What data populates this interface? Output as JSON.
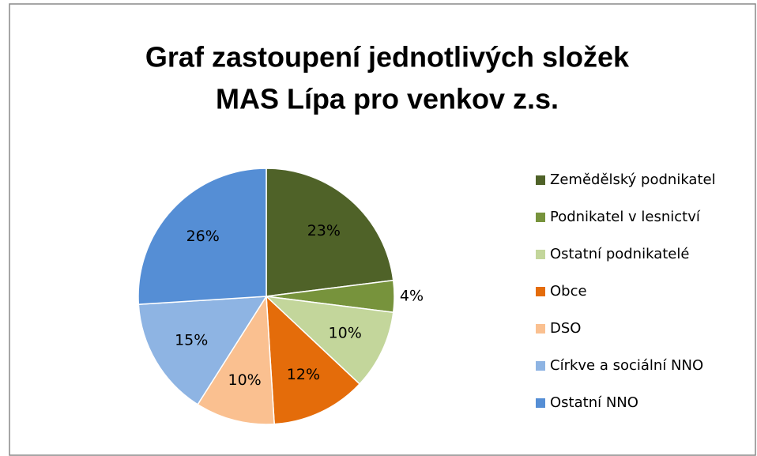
{
  "chart_data": {
    "type": "pie",
    "title": [
      "Graf zastoupení jednotlivých složek",
      "MAS Lípa pro venkov z.s."
    ],
    "categories": [
      "Zemědělský podnikatel",
      "Podnikatel v lesnictví",
      "Ostatní podnikatelé",
      "Obce",
      "DSO",
      "Církve a sociální NNO",
      "Ostatní NNO"
    ],
    "values": [
      23,
      4,
      10,
      12,
      10,
      15,
      26
    ],
    "value_labels": [
      "23%",
      "4%",
      "10%",
      "12%",
      "10%",
      "15%",
      "26%"
    ],
    "colors": [
      "#4f6228",
      "#77933c",
      "#c3d69b",
      "#e46c0a",
      "#fac090",
      "#8eb4e3",
      "#558ed5"
    ],
    "legend": "right"
  }
}
